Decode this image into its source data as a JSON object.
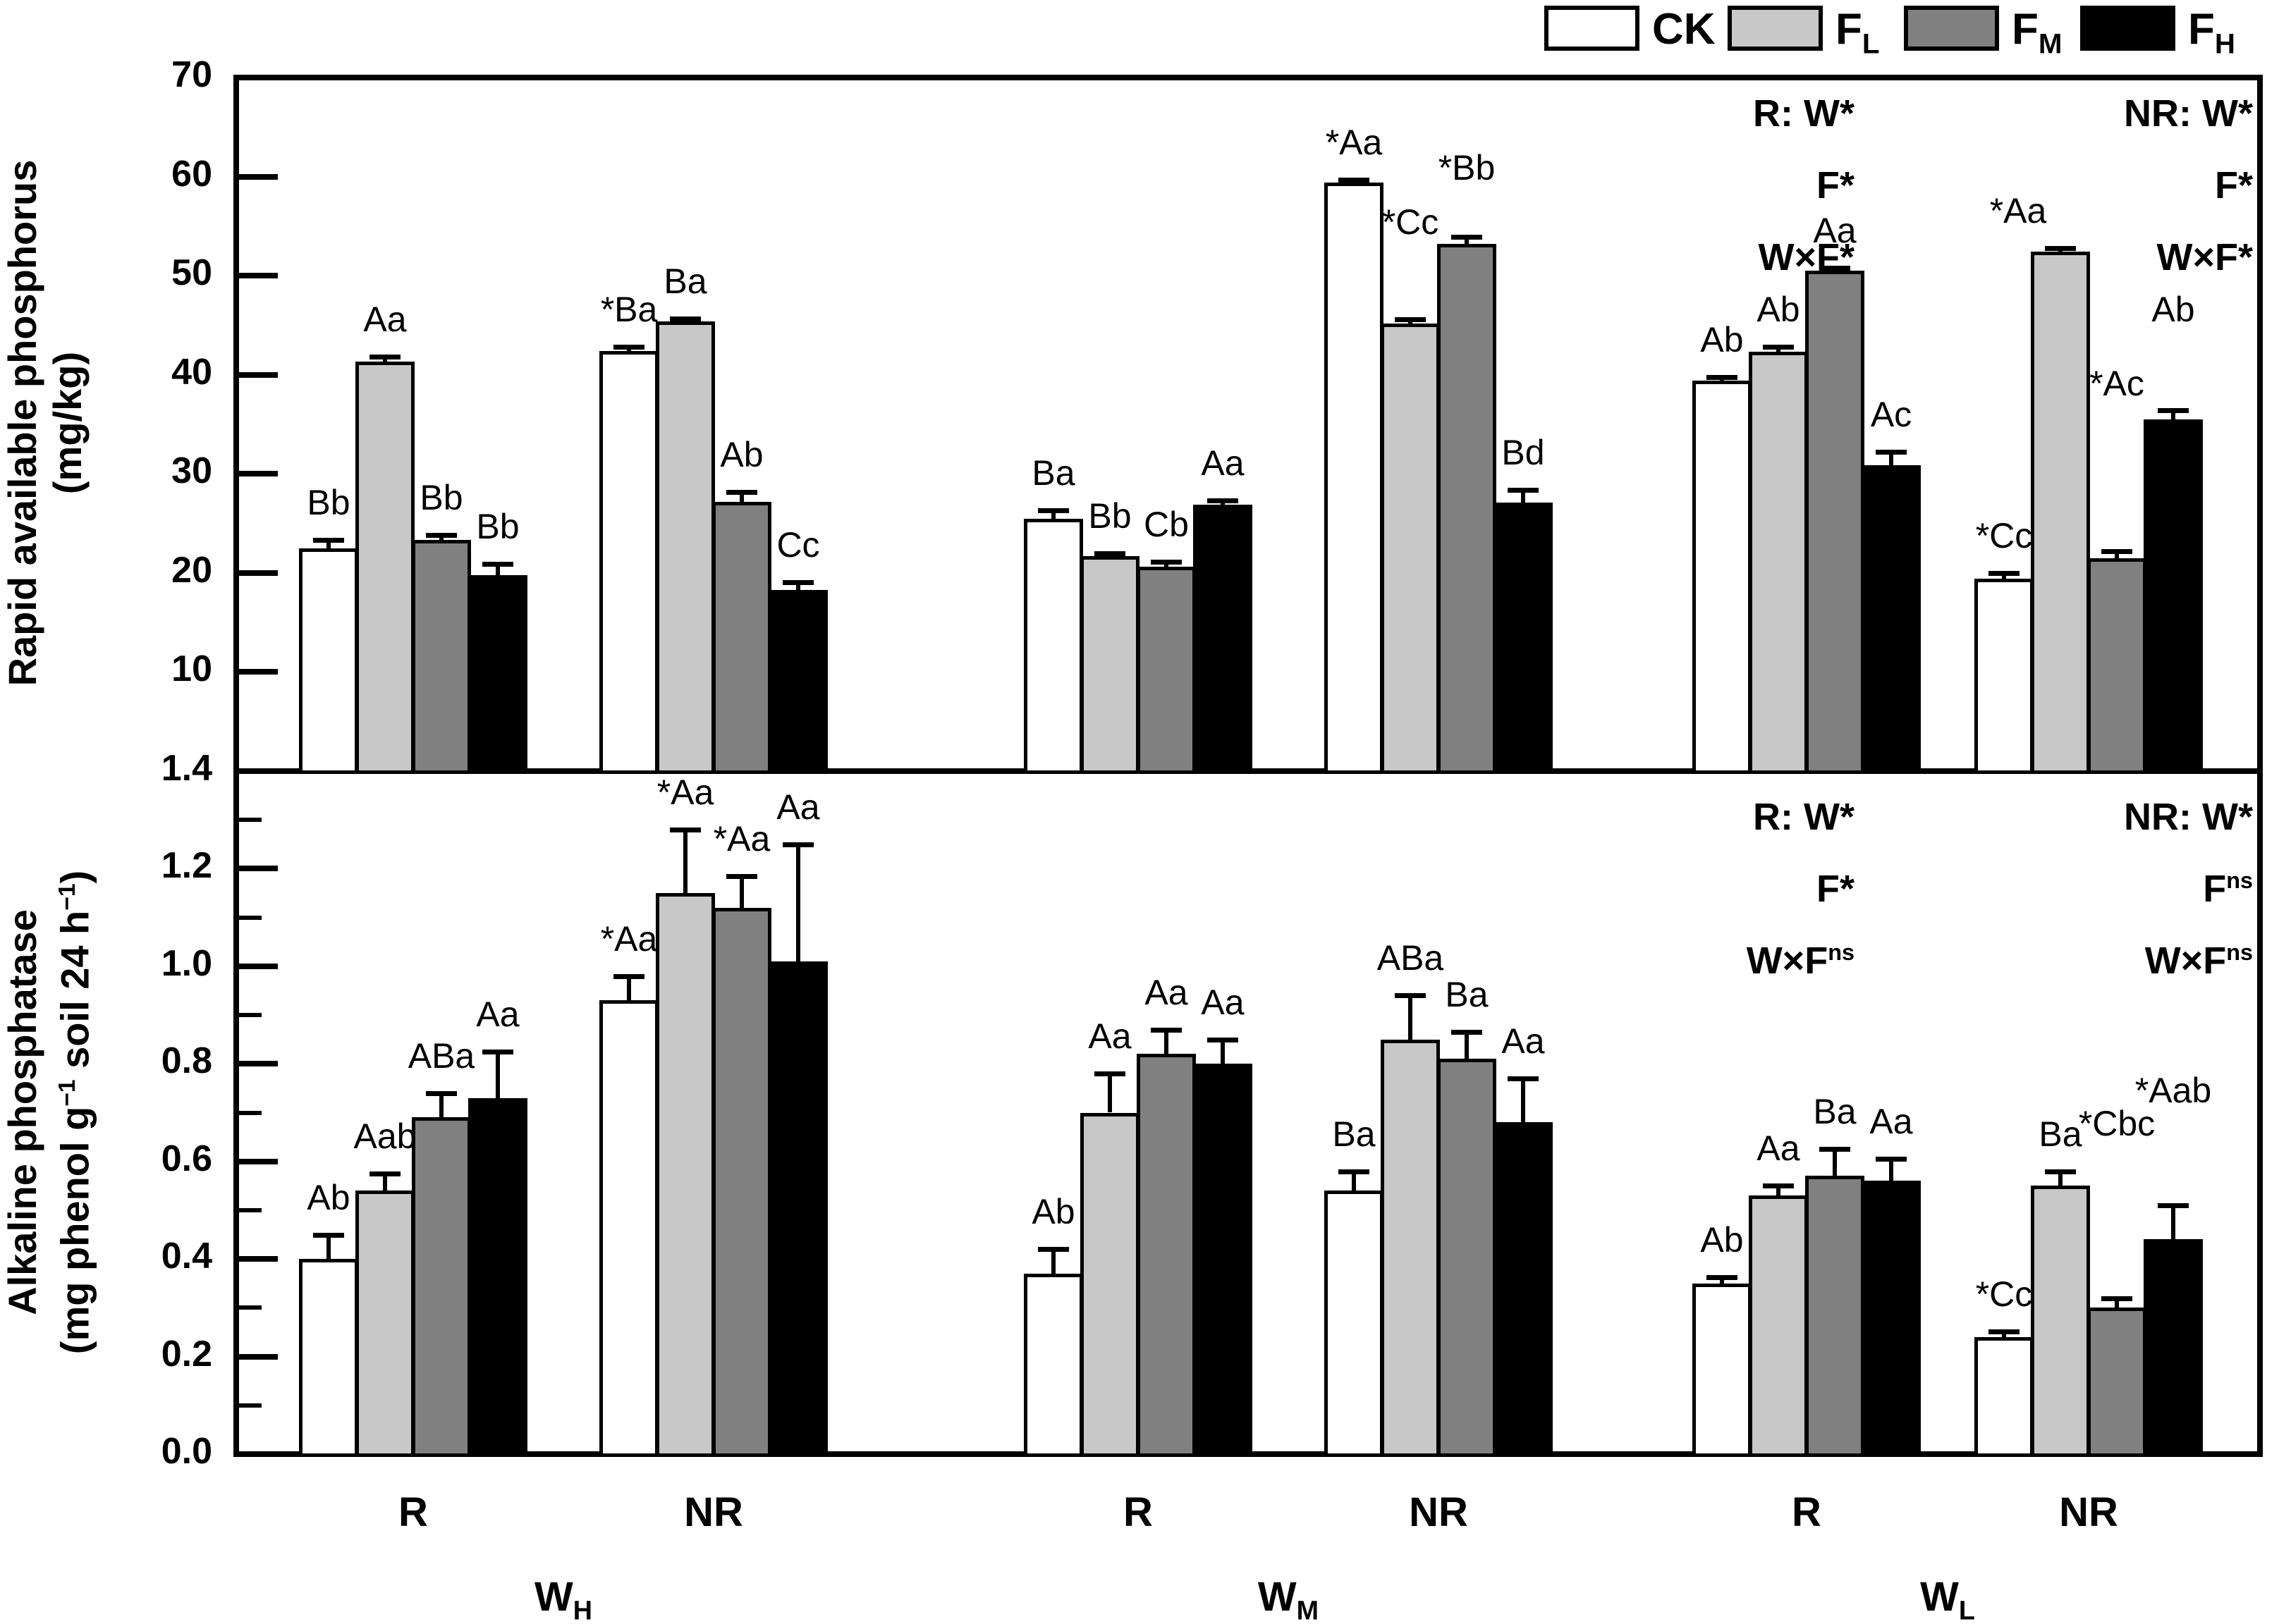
{
  "legend": {
    "items": [
      {
        "series": "CK",
        "label": [
          "CK"
        ],
        "color": "#ffffff"
      },
      {
        "series": "FL",
        "label": [
          "F",
          {
            "sub": "L"
          }
        ],
        "color": "#c8c8c8"
      },
      {
        "series": "FM",
        "label": [
          "F",
          {
            "sub": "M"
          }
        ],
        "color": "#808080"
      },
      {
        "series": "FH",
        "label": [
          "F",
          {
            "sub": "H"
          }
        ],
        "color": "#000000"
      }
    ]
  },
  "x_axis": {
    "cond_labels": [
      "R",
      "NR",
      "R",
      "NR",
      "R",
      "NR"
    ],
    "sections": [
      [
        "W",
        {
          "sub": "H"
        }
      ],
      [
        "W",
        {
          "sub": "M"
        }
      ],
      [
        "W",
        {
          "sub": "L"
        }
      ]
    ]
  },
  "chart_data": [
    {
      "id": "rapid-available-phosphorus",
      "type": "bar",
      "ylabel_lines": [
        [
          "Rapid available phosphorus"
        ],
        [
          "(mg/kg)"
        ]
      ],
      "ylim": [
        0,
        70
      ],
      "ytick_labels": [
        {
          "v": 70,
          "t": "70"
        },
        {
          "v": 60,
          "t": "60"
        },
        {
          "v": 50,
          "t": "50"
        },
        {
          "v": 40,
          "t": "40"
        },
        {
          "v": 30,
          "t": "30"
        },
        {
          "v": 20,
          "t": "20"
        },
        {
          "v": 10,
          "t": "10"
        }
      ],
      "ytick_marks": [
        60,
        50,
        40,
        30,
        20,
        10
      ],
      "ytick_minor": [],
      "groups": [
        {
          "section": "WH",
          "cond": "R",
          "bars": [
            {
              "series": "CK",
              "value": 22.5,
              "err": 0.8,
              "label": "Bb"
            },
            {
              "series": "FL",
              "value": 41.3,
              "err": 0.5,
              "label": "Aa"
            },
            {
              "series": "FM",
              "value": 23.3,
              "err": 0.5,
              "label": "Bb"
            },
            {
              "series": "FH",
              "value": 19.8,
              "err": 1.1,
              "label": "Bb"
            }
          ]
        },
        {
          "section": "WH",
          "cond": "NR",
          "bars": [
            {
              "series": "CK",
              "value": 42.4,
              "err": 0.4,
              "label": "*Ba"
            },
            {
              "series": "FL",
              "value": 45.4,
              "err": 0.3,
              "label": "Ba"
            },
            {
              "series": "FM",
              "value": 27.2,
              "err": 1.0,
              "label": "Ab"
            },
            {
              "series": "FH",
              "value": 18.3,
              "err": 0.8,
              "label": "Cc"
            }
          ]
        },
        {
          "section": "WM",
          "cond": "R",
          "bars": [
            {
              "series": "CK",
              "value": 25.5,
              "err": 0.8,
              "label": "Ba"
            },
            {
              "series": "FL",
              "value": 21.7,
              "err": 0.3,
              "label": "Bb"
            },
            {
              "series": "FM",
              "value": 20.6,
              "err": 0.5,
              "label": "Cb"
            },
            {
              "series": "FH",
              "value": 26.9,
              "err": 0.4,
              "label": "Aa"
            }
          ]
        },
        {
          "section": "WM",
          "cond": "NR",
          "bars": [
            {
              "series": "CK",
              "value": 59.4,
              "err": 0.3,
              "label": "*Aa"
            },
            {
              "series": "FL",
              "value": 45.2,
              "err": 0.4,
              "label": "*Cc",
              "label_dy": 85
            },
            {
              "series": "FM",
              "value": 53.2,
              "err": 0.7,
              "label": "*Bb",
              "label_dy": 45
            },
            {
              "series": "FH",
              "value": 27.1,
              "err": 1.3,
              "label": "Bd"
            }
          ]
        },
        {
          "section": "WL",
          "cond": "R",
          "bars": [
            {
              "series": "CK",
              "value": 39.4,
              "err": 0.4,
              "label": "Ab"
            },
            {
              "series": "FL",
              "value": 42.3,
              "err": 0.5,
              "label": "Ab"
            },
            {
              "series": "FM",
              "value": 50.5,
              "err": 0.3,
              "label": "Aa"
            },
            {
              "series": "FH",
              "value": 30.9,
              "err": 1.3,
              "label": "Ac"
            }
          ]
        },
        {
          "section": "WL",
          "cond": "NR",
          "bars": [
            {
              "series": "CK",
              "value": 19.4,
              "err": 0.6,
              "label": "*Cc"
            },
            {
              "series": "FL",
              "value": 52.4,
              "err": 0.4,
              "label": "*Aa",
              "label_dx": -60
            },
            {
              "series": "FM",
              "value": 21.5,
              "err": 0.7,
              "label": "*Ac",
              "label_dy": 185
            },
            {
              "series": "FH",
              "value": 35.5,
              "err": 0.9,
              "label": "Ab",
              "label_dy": 90
            }
          ]
        }
      ],
      "annotations": [
        {
          "col": "R",
          "lines": [
            [
              "R: W*"
            ],
            [
              "F*"
            ],
            [
              "W×F*"
            ]
          ]
        },
        {
          "col": "NR",
          "lines": [
            [
              "NR: W*"
            ],
            [
              "F*"
            ],
            [
              "W×F*"
            ]
          ]
        }
      ]
    },
    {
      "id": "alkaline-phosphatase",
      "type": "bar",
      "ylabel_lines": [
        [
          "Alkaline phosphatase"
        ],
        [
          "(mg phenol g",
          {
            "sup": "−1"
          },
          " soil 24 h",
          {
            "sup": "−1"
          },
          ")"
        ]
      ],
      "ylim": [
        0,
        1.4
      ],
      "ytick_labels": [
        {
          "v": 1.4,
          "t": "1.4"
        },
        {
          "v": 1.2,
          "t": "1.2"
        },
        {
          "v": 1.0,
          "t": "1.0"
        },
        {
          "v": 0.8,
          "t": "0.8"
        },
        {
          "v": 0.6,
          "t": "0.6"
        },
        {
          "v": 0.4,
          "t": "0.4"
        },
        {
          "v": 0.2,
          "t": "0.2"
        },
        {
          "v": 0.0,
          "t": "0.0"
        }
      ],
      "ytick_marks": [
        1.2,
        1.0,
        0.8,
        0.6,
        0.4,
        0.2
      ],
      "ytick_minor": [
        1.3,
        1.1,
        0.9,
        0.7,
        0.5,
        0.3,
        0.1
      ],
      "groups": [
        {
          "section": "WH",
          "cond": "R",
          "bars": [
            {
              "series": "CK",
              "value": 0.4,
              "err": 0.05,
              "label": "Ab"
            },
            {
              "series": "FL",
              "value": 0.54,
              "err": 0.035,
              "label": "Aab"
            },
            {
              "series": "FM",
              "value": 0.69,
              "err": 0.05,
              "label": "ABa"
            },
            {
              "series": "FH",
              "value": 0.73,
              "err": 0.095,
              "label": "Aa"
            }
          ]
        },
        {
          "section": "WH",
          "cond": "NR",
          "bars": [
            {
              "series": "CK",
              "value": 0.93,
              "err": 0.05,
              "label": "*Aa"
            },
            {
              "series": "FL",
              "value": 1.15,
              "err": 0.13,
              "label": "*Aa"
            },
            {
              "series": "FM",
              "value": 1.12,
              "err": 0.065,
              "label": "*Aa"
            },
            {
              "series": "FH",
              "value": 1.01,
              "err": 0.24,
              "label": "Aa"
            }
          ]
        },
        {
          "section": "WM",
          "cond": "R",
          "bars": [
            {
              "series": "CK",
              "value": 0.37,
              "err": 0.05,
              "label": "Ab"
            },
            {
              "series": "FL",
              "value": 0.7,
              "err": 0.08,
              "label": "Aa"
            },
            {
              "series": "FM",
              "value": 0.82,
              "err": 0.05,
              "label": "Aa"
            },
            {
              "series": "FH",
              "value": 0.8,
              "err": 0.05,
              "label": "Aa"
            }
          ]
        },
        {
          "section": "WM",
          "cond": "NR",
          "bars": [
            {
              "series": "CK",
              "value": 0.54,
              "err": 0.04,
              "label": "Ba"
            },
            {
              "series": "FL",
              "value": 0.85,
              "err": 0.09,
              "label": "ABa"
            },
            {
              "series": "FM",
              "value": 0.81,
              "err": 0.055,
              "label": "Ba"
            },
            {
              "series": "FH",
              "value": 0.68,
              "err": 0.09,
              "label": "Aa"
            }
          ]
        },
        {
          "section": "WL",
          "cond": "R",
          "bars": [
            {
              "series": "CK",
              "value": 0.35,
              "err": 0.012,
              "label": "Ab"
            },
            {
              "series": "FL",
              "value": 0.53,
              "err": 0.02,
              "label": "Aa"
            },
            {
              "series": "FM",
              "value": 0.57,
              "err": 0.055,
              "label": "Ba"
            },
            {
              "series": "FH",
              "value": 0.56,
              "err": 0.045,
              "label": "Aa"
            }
          ]
        },
        {
          "section": "WL",
          "cond": "NR",
          "bars": [
            {
              "series": "CK",
              "value": 0.24,
              "err": 0.012,
              "label": "*Cc"
            },
            {
              "series": "FL",
              "value": 0.55,
              "err": 0.03,
              "label": "Ba"
            },
            {
              "series": "FM",
              "value": 0.3,
              "err": 0.02,
              "label": "*Cbc",
              "label_dy": 195
            },
            {
              "series": "FH",
              "value": 0.44,
              "err": 0.07,
              "label": "*Aab",
              "label_dy": 110
            }
          ]
        }
      ],
      "annotations": [
        {
          "col": "R",
          "lines": [
            [
              "R: W*"
            ],
            [
              "F*"
            ],
            [
              "W×F",
              {
                "sup": "ns"
              }
            ]
          ]
        },
        {
          "col": "NR",
          "lines": [
            [
              "NR: W*"
            ],
            [
              "F",
              {
                "sup": "ns"
              }
            ],
            [
              "W×F",
              {
                "sup": "ns"
              }
            ]
          ]
        }
      ]
    }
  ]
}
